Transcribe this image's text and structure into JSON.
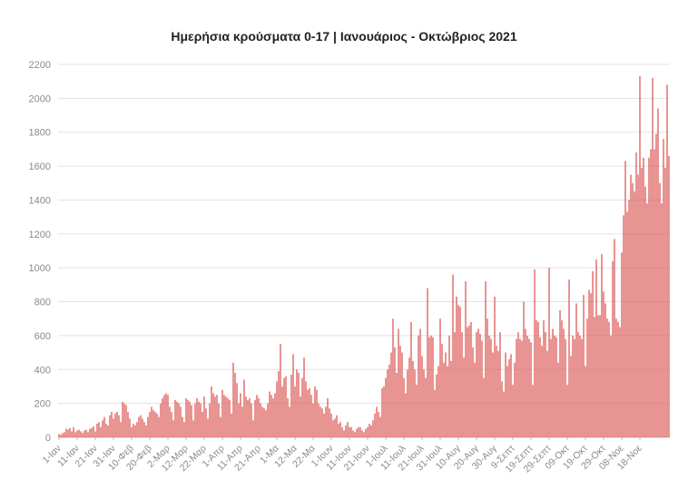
{
  "chart_data": {
    "type": "bar",
    "title": "Ημερήσια κρούσματα 0-17 | Ιανουάριος - Οκτώβριος 2021",
    "xlabel": "",
    "ylabel": "",
    "ylim": [
      0,
      2200
    ],
    "yticks": [
      0,
      200,
      400,
      600,
      800,
      1000,
      1200,
      1400,
      1600,
      1800,
      2000,
      2200
    ],
    "grid": true,
    "bar_color": "#d9534f",
    "xtick_labels": [
      "1-Ιαν",
      "11-Ιαν",
      "21-Ιαν",
      "31-Ιαν",
      "10-Φεβ",
      "20-Φεβ",
      "2-Μαρ",
      "12-Μαρ",
      "22-Μαρ",
      "1-Απρ",
      "11-Απρ",
      "21-Απρ",
      "1-Μα",
      "12-Μα",
      "22-Μα",
      "1-Ιουν",
      "11-Ιουν",
      "21-Ιουν",
      "1-Ιουλ",
      "11-Ιουλ",
      "21-Ιουλ",
      "31-Ιουλ",
      "10-Αυγ",
      "20-Αυγ",
      "30-Αυγ",
      "9-Σεπτ",
      "19-Σεπτ",
      "29-Σεπτ",
      "09-Οκτ",
      "19-Οκτ",
      "29-Οκτ",
      "08-Νοε",
      "18-Νοε"
    ],
    "values": [
      20,
      15,
      25,
      30,
      50,
      45,
      55,
      35,
      60,
      30,
      40,
      45,
      35,
      25,
      40,
      45,
      30,
      50,
      55,
      65,
      35,
      80,
      90,
      60,
      100,
      120,
      80,
      70,
      130,
      150,
      110,
      140,
      150,
      130,
      90,
      210,
      200,
      190,
      150,
      110,
      60,
      80,
      70,
      90,
      120,
      130,
      110,
      90,
      70,
      120,
      150,
      180,
      160,
      150,
      140,
      120,
      200,
      230,
      250,
      260,
      250,
      180,
      150,
      100,
      220,
      210,
      200,
      180,
      120,
      90,
      230,
      220,
      210,
      190,
      100,
      200,
      230,
      210,
      200,
      150,
      240,
      170,
      110,
      200,
      300,
      260,
      240,
      250,
      200,
      120,
      280,
      250,
      240,
      230,
      220,
      140,
      440,
      380,
      320,
      200,
      260,
      180,
      340,
      240,
      220,
      230,
      200,
      100,
      220,
      250,
      230,
      200,
      180,
      170,
      160,
      200,
      270,
      250,
      230,
      260,
      330,
      390,
      550,
      300,
      350,
      360,
      230,
      180,
      370,
      490,
      300,
      400,
      380,
      240,
      350,
      470,
      330,
      280,
      290,
      250,
      200,
      300,
      280,
      200,
      180,
      170,
      140,
      180,
      230,
      170,
      140,
      100,
      110,
      130,
      80,
      90,
      60,
      40,
      70,
      90,
      60,
      60,
      40,
      30,
      50,
      60,
      60,
      40,
      30,
      50,
      60,
      80,
      70,
      100,
      140,
      180,
      150,
      120,
      290,
      300,
      350,
      400,
      430,
      500,
      700,
      530,
      380,
      640,
      540,
      500,
      350,
      260,
      400,
      470,
      680,
      450,
      400,
      310,
      600,
      640,
      480,
      400,
      350,
      880,
      590,
      600,
      590,
      280,
      370,
      420,
      700,
      550,
      440,
      500,
      420,
      600,
      450,
      960,
      620,
      830,
      780,
      770,
      620,
      470,
      920,
      650,
      660,
      680,
      530,
      440,
      620,
      640,
      610,
      570,
      350,
      920,
      700,
      600,
      580,
      500,
      830,
      540,
      510,
      620,
      330,
      270,
      500,
      420,
      460,
      490,
      310,
      440,
      580,
      620,
      580,
      570,
      800,
      640,
      600,
      580,
      560,
      310,
      990,
      690,
      680,
      590,
      540,
      690,
      620,
      510,
      1000,
      580,
      640,
      600,
      590,
      440,
      750,
      690,
      640,
      580,
      310,
      930,
      480,
      600,
      580,
      790,
      620,
      600,
      580,
      840,
      420,
      700,
      870,
      850,
      980,
      710,
      1050,
      720,
      720,
      1080,
      860,
      790,
      700,
      680,
      600,
      1040,
      1170,
      700,
      680,
      650,
      1090,
      1310,
      1630,
      1330,
      1400,
      1550,
      1500,
      1450,
      1680,
      1550,
      2130,
      1590,
      1650,
      1480,
      1380,
      1650,
      1700,
      2120,
      1700,
      1790,
      1940,
      1500,
      1380,
      1760,
      1590,
      2080,
      1660
    ]
  }
}
